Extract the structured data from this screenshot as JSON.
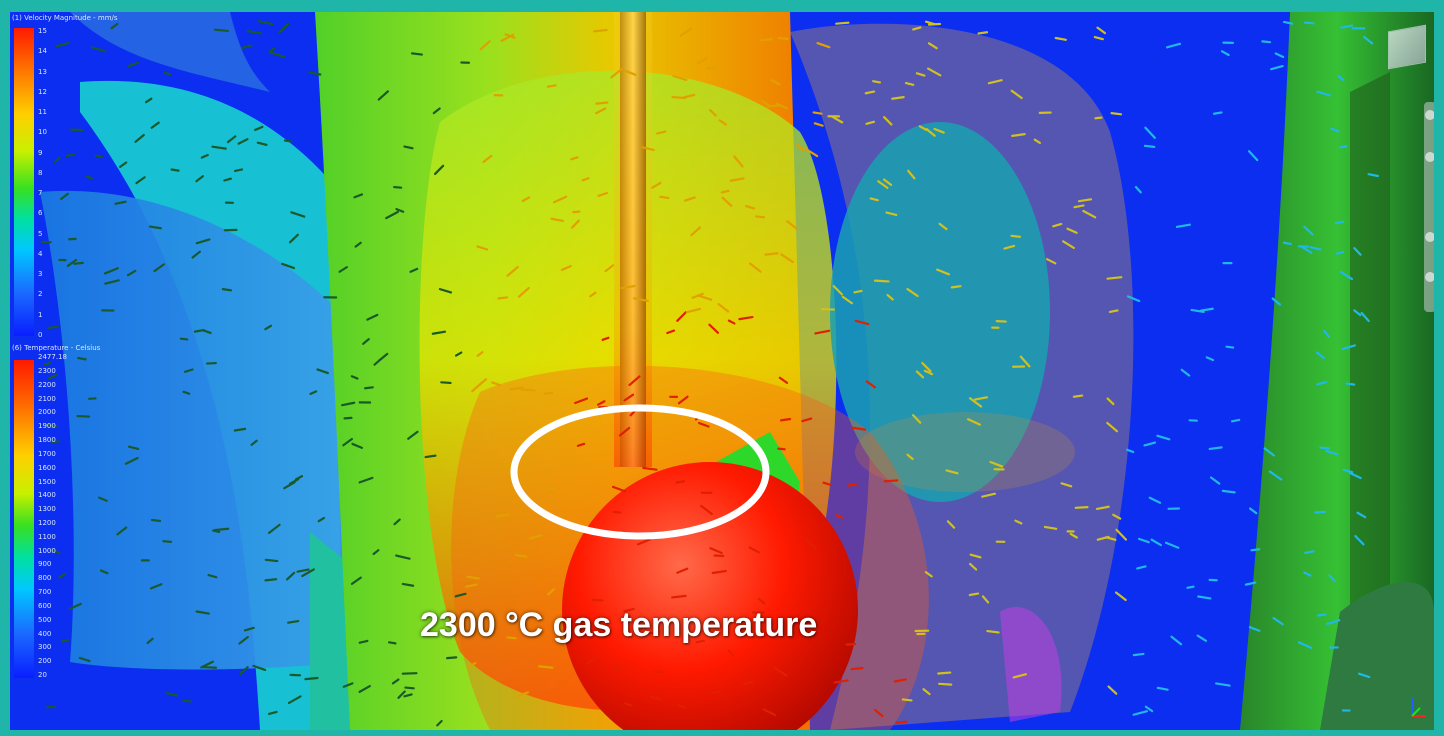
{
  "legend_velocity": {
    "title": "(1) Velocity Magnitude - mm/s",
    "ticks": [
      "15",
      "14",
      "13",
      "12",
      "11",
      "10",
      "9",
      "8",
      "7",
      "6",
      "5",
      "4",
      "3",
      "2",
      "1",
      "0"
    ]
  },
  "legend_temperature": {
    "title": "(6) Temperature - Celsius",
    "max_label": "2477.18",
    "ticks": [
      "2300",
      "2200",
      "2100",
      "2000",
      "1900",
      "1800",
      "1700",
      "1600",
      "1500",
      "1400",
      "1300",
      "1200",
      "1100",
      "1000",
      "900",
      "800",
      "700",
      "600",
      "500",
      "400",
      "300",
      "200",
      "20"
    ]
  },
  "annotation": {
    "text": "2300 °C gas temperature"
  },
  "colors": {
    "background": "#0b2ef0",
    "hot": "#ff1a00",
    "frame": "#1fb5a8",
    "highlight_ring": "#ffffff"
  },
  "icons": [
    "viewcube-icon",
    "orbit-icon",
    "pan-icon",
    "zoom-icon",
    "fit-icon",
    "axis-triad-icon"
  ]
}
